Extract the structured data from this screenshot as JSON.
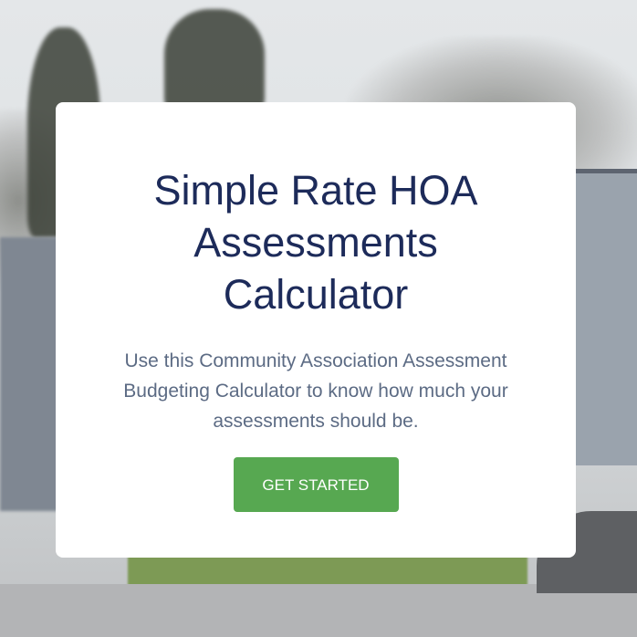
{
  "hero": {
    "title_lines": [
      "Simple Rate HOA",
      "Assessments",
      "Calculator"
    ],
    "subtitle": "Use this Community Association Assessment Budgeting Calculator to know how much your assessments should be.",
    "cta_label": "GET STARTED"
  },
  "colors": {
    "title": "#1d2b5a",
    "subtitle": "#5c6b84",
    "button": "#57a851",
    "card": "#ffffff"
  },
  "background": "suburban-street-photo"
}
